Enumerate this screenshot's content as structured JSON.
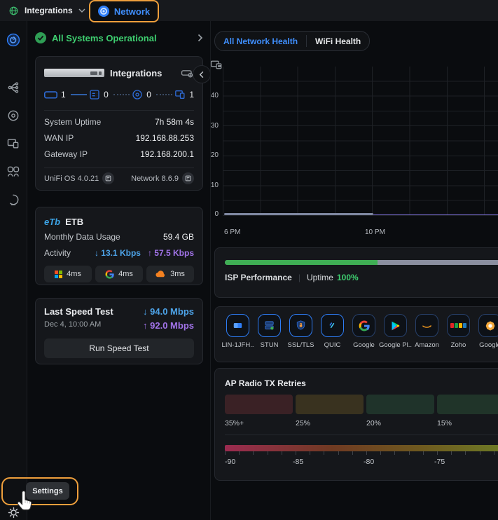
{
  "topbar": {
    "app_label": "Integrations",
    "network_label": "Network"
  },
  "status": {
    "label": "All Systems Operational"
  },
  "gateway_card": {
    "title": "Integrations",
    "counts": [
      {
        "icon": "gateway-icon",
        "value": "1",
        "connector": "solid"
      },
      {
        "icon": "switch-icon",
        "value": "0",
        "connector": "dotted"
      },
      {
        "icon": "access-point-icon",
        "value": "0",
        "connector": "dotted"
      },
      {
        "icon": "client-devices-icon",
        "value": "1",
        "connector": "none"
      }
    ],
    "rows": [
      {
        "label": "System Uptime",
        "value": "7h 58m 4s"
      },
      {
        "label": "WAN IP",
        "value": "192.168.88.253"
      },
      {
        "label": "Gateway IP",
        "value": "192.168.200.1"
      }
    ],
    "os_version": "UniFi OS 4.0.21",
    "network_version": "Network 8.6.9"
  },
  "isp_card": {
    "logo_text": "eTb",
    "name": "ETB",
    "usage_label": "Monthly Data Usage",
    "usage_value": "59.4 GB",
    "activity_label": "Activity",
    "down": "↓ 13.1 Kbps",
    "up": "↑ 57.5 Kbps",
    "pings": [
      {
        "provider": "microsoft",
        "latency": "4ms"
      },
      {
        "provider": "google",
        "latency": "4ms"
      },
      {
        "provider": "cloudflare",
        "latency": "3ms"
      }
    ]
  },
  "speed_card": {
    "title": "Last Speed Test",
    "date": "Dec 4, 10:00 AM",
    "down": "↓ 94.0 Mbps",
    "up": "↑ 92.0 Mbps",
    "button": "Run Speed Test"
  },
  "health": {
    "tab_all": "All Network Health",
    "tab_wifi": "WiFi Health",
    "chart_data": {
      "type": "line",
      "title": "",
      "x_ticks": [
        "6 PM",
        "10 PM"
      ],
      "y_ticks": [
        0,
        10,
        20,
        30,
        40
      ],
      "ylim": [
        0,
        45
      ],
      "grid": true,
      "series": [
        {
          "name": "primary",
          "color": "#7e87a0",
          "x_start": "6 PM",
          "x_end": "10 PM",
          "values": [
            0.6,
            0.6,
            0.6,
            0.6,
            0.6,
            0.6,
            0.6,
            0.6,
            0.6
          ]
        },
        {
          "name": "secondary",
          "color": "#7468c8",
          "x_start": "10 PM",
          "x_end": "right-edge",
          "values": [
            0.3,
            0.3,
            0.3,
            0.3,
            0.3,
            0.3,
            0.3
          ]
        }
      ]
    },
    "isp_performance": {
      "label": "ISP Performance",
      "uptime_label": "Uptime",
      "uptime_value": "100%",
      "green_pct": 54,
      "green_color": "#3fae54",
      "rest_color": "#8b8fa0"
    }
  },
  "apps": [
    {
      "label": "LIN-1JFH..",
      "icon": "window-icon",
      "bright": true
    },
    {
      "label": "STUN",
      "icon": "server-icon",
      "bright": true
    },
    {
      "label": "SSL/TLS",
      "icon": "shield-lock-icon",
      "bright": true
    },
    {
      "label": "QUIC",
      "icon": "link-icon",
      "bright": true
    },
    {
      "label": "Google",
      "icon": "google-g-icon",
      "bright": false
    },
    {
      "label": "Google Pl..",
      "icon": "google-play-icon",
      "bright": false
    },
    {
      "label": "Amazon",
      "icon": "amazon-smile-icon",
      "bright": false
    },
    {
      "label": "Zoho",
      "icon": "zoho-logo-icon",
      "bright": false
    },
    {
      "label": "Google",
      "icon": "google-burst-icon",
      "bright": false
    }
  ],
  "ap_radio": {
    "title": "AP Radio TX Retries",
    "segments": [
      {
        "label": "35%+",
        "color": "#3a2125"
      },
      {
        "label": "25%",
        "color": "#39321f"
      },
      {
        "label": "20%",
        "color": "#1f332a"
      },
      {
        "label": "15%",
        "color": "#203429"
      }
    ],
    "rssi_labels": [
      "-90",
      "-85",
      "-80",
      "-75"
    ],
    "rssi_gradient": [
      "#9b2b50",
      "#6f3a22",
      "#6e5a1f",
      "#6d7c26"
    ]
  },
  "settings": {
    "tooltip": "Settings"
  },
  "accent_colors": {
    "highlight_orange": "#ee9f3c",
    "link_blue": "#3f8efc",
    "ok_green": "#3ecf70"
  }
}
